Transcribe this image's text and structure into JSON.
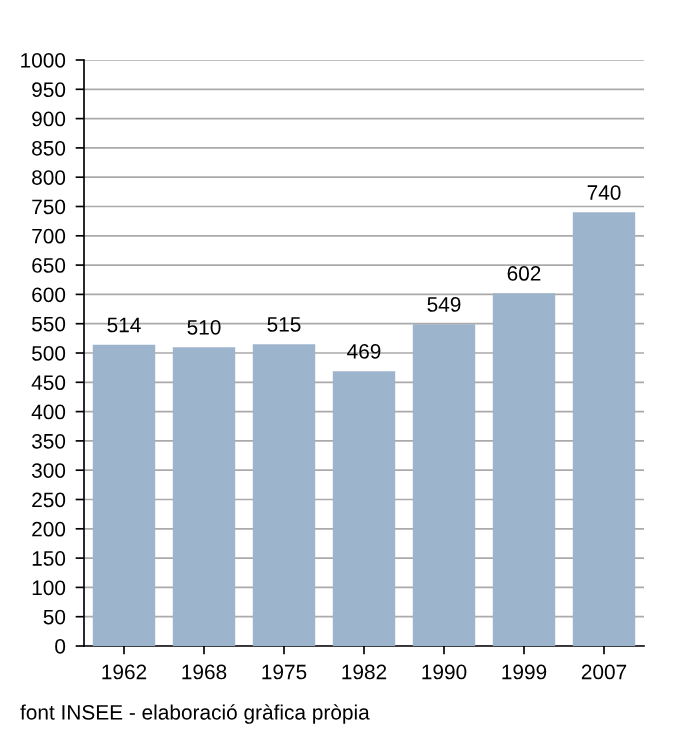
{
  "chart_data": {
    "type": "bar",
    "categories": [
      "1962",
      "1968",
      "1975",
      "1982",
      "1990",
      "1999",
      "2007"
    ],
    "values": [
      514,
      510,
      515,
      469,
      549,
      602,
      740
    ],
    "color": "#9cb4cc",
    "ylim": [
      0,
      1000
    ],
    "yticks": [
      0,
      50,
      100,
      150,
      200,
      250,
      300,
      350,
      400,
      450,
      500,
      550,
      600,
      650,
      700,
      750,
      800,
      850,
      900,
      950,
      1000
    ],
    "grid": "y",
    "data_labels": true,
    "annotations": [
      "font INSEE - elaboració gràfica pròpia"
    ]
  }
}
